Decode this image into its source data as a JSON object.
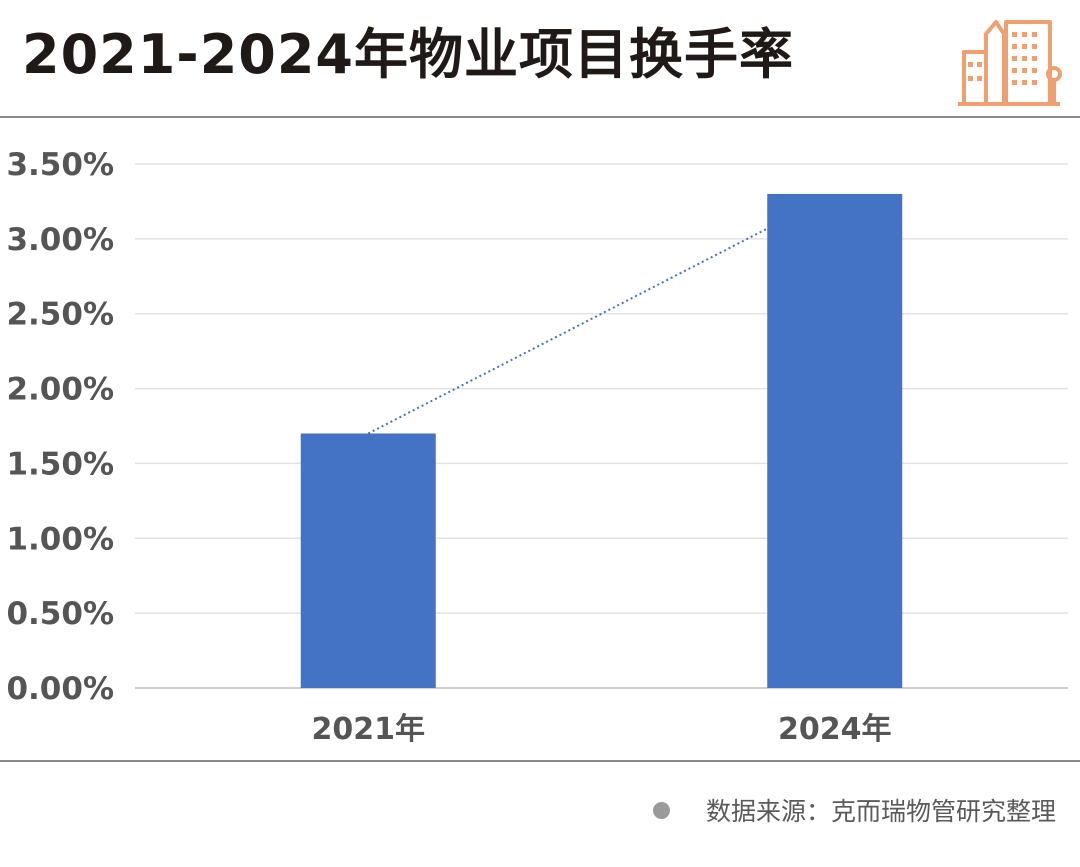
{
  "title": "2021-2024年物业项目换手率",
  "source": "数据来源：克而瑞物管研究整理",
  "logo_icon": "building-icon",
  "colors": {
    "bar": "#4472c4",
    "trendline": "#4472c4",
    "gridline": "#e3e3e3",
    "axis_text": "#555555",
    "logo": "#f0a070"
  },
  "chart_data": {
    "type": "bar",
    "categories": [
      "2021年",
      "2024年"
    ],
    "values": [
      0.017,
      0.033
    ],
    "ylim": [
      0,
      0.035
    ],
    "yticks": [
      "0.00%",
      "0.50%",
      "1.00%",
      "1.50%",
      "2.00%",
      "2.50%",
      "3.00%",
      "3.50%"
    ],
    "trendline": "dotted line connecting bar tops",
    "grid": true,
    "legend": "none"
  }
}
